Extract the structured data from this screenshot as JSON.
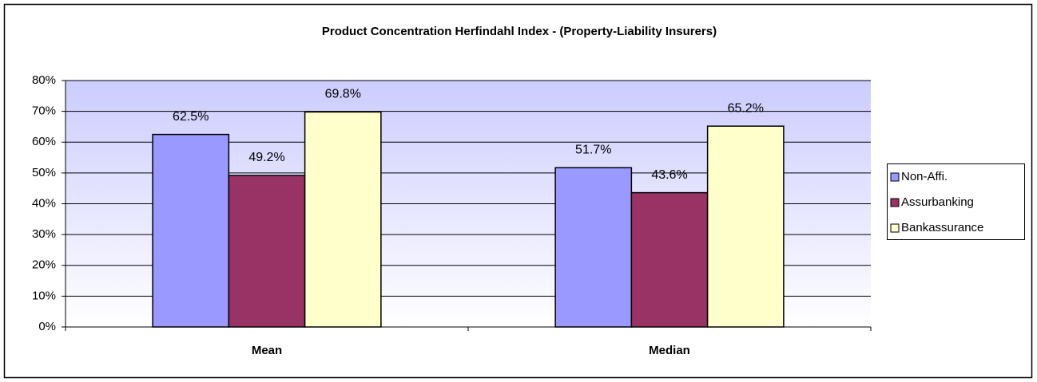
{
  "chart_data": {
    "type": "bar",
    "title": "Product Concentration Herfindahl Index  - (Property-Liability Insurers)",
    "categories": [
      "Mean",
      "Median"
    ],
    "series": [
      {
        "name": "Non-Affi.",
        "color": "#9999ff",
        "values": [
          62.5,
          51.7
        ],
        "value_labels": [
          "62.5%",
          "51.7%"
        ]
      },
      {
        "name": "Assurbanking",
        "color": "#993366",
        "values": [
          49.2,
          43.6
        ],
        "value_labels": [
          "49.2%",
          "43.6%"
        ]
      },
      {
        "name": "Bankassurance",
        "color": "#ffffcc",
        "values": [
          69.8,
          65.2
        ],
        "value_labels": [
          "69.8%",
          "65.2%"
        ]
      }
    ],
    "ylim": [
      0,
      80
    ],
    "yticks": [
      {
        "value": 0,
        "label": "0%"
      },
      {
        "value": 10,
        "label": "10%"
      },
      {
        "value": 20,
        "label": "20%"
      },
      {
        "value": 30,
        "label": "30%"
      },
      {
        "value": 40,
        "label": "40%"
      },
      {
        "value": 50,
        "label": "50%"
      },
      {
        "value": 60,
        "label": "60%"
      },
      {
        "value": 70,
        "label": "70%"
      },
      {
        "value": 80,
        "label": "80%"
      }
    ],
    "grid": true,
    "legend": "right"
  }
}
